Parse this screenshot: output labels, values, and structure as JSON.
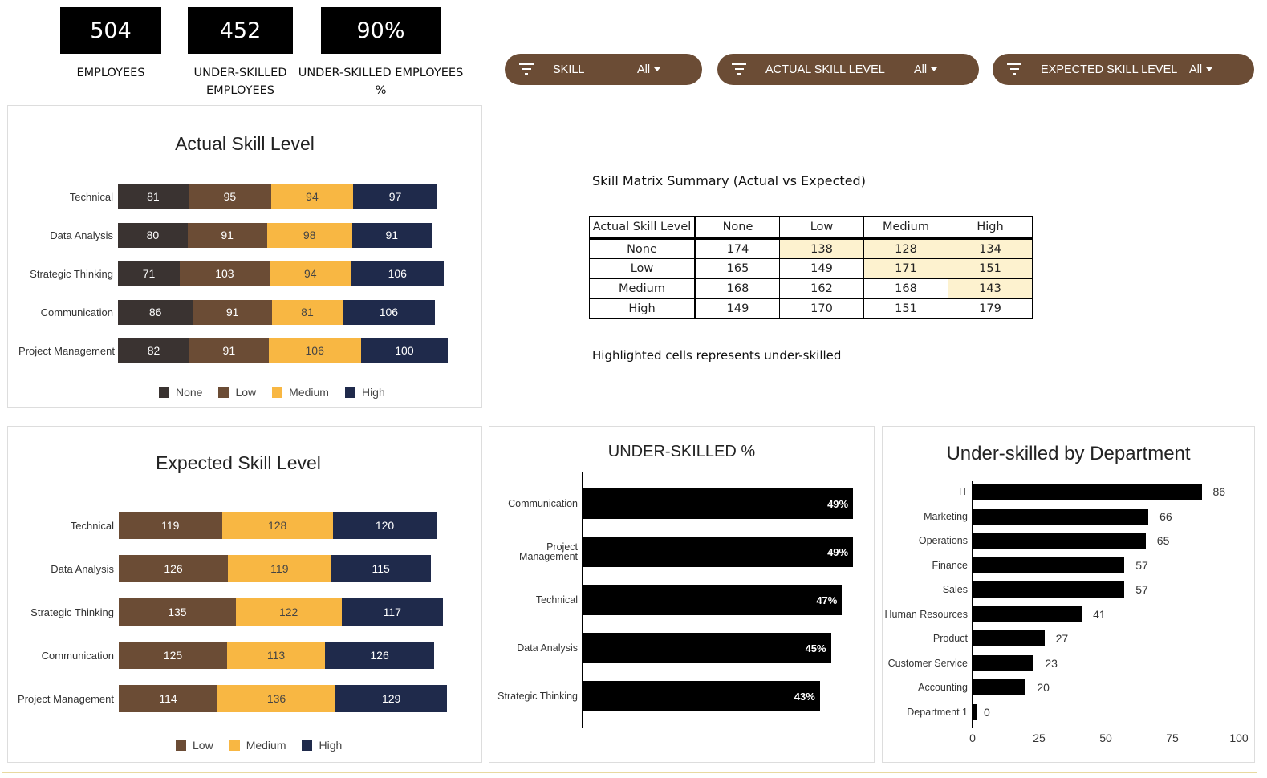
{
  "kpis": [
    {
      "value": "504",
      "label": "EMPLOYEES"
    },
    {
      "value": "452",
      "label": "UNDER-SKILLED EMPLOYEES"
    },
    {
      "value": "90%",
      "label": "UNDER-SKILLED EMPLOYEES %"
    }
  ],
  "filters": [
    {
      "label": "SKILL",
      "value": "All",
      "icon": "filter-icon"
    },
    {
      "label": "ACTUAL SKILL LEVEL",
      "value": "All",
      "icon": "filter-icon"
    },
    {
      "label": "EXPECTED SKILL LEVEL",
      "value": "All",
      "icon": "filter-icon"
    }
  ],
  "colors": {
    "None": "#3a3331",
    "Low": "#6b4c35",
    "Medium": "#f8b743",
    "High": "#1f2a4b",
    "bar": "#000000",
    "highlight": "#fdf2cf",
    "filter": "#6b4c35"
  },
  "matrix": {
    "title": "Skill Matrix Summary (Actual vs Expected)",
    "corner": "Actual Skill Level",
    "columns": [
      "None",
      "Low",
      "Medium",
      "High"
    ],
    "rows": [
      {
        "label": "None",
        "values": [
          "174",
          "138",
          "128",
          "134"
        ],
        "highlight": [
          false,
          true,
          true,
          true
        ]
      },
      {
        "label": "Low",
        "values": [
          "165",
          "149",
          "171",
          "151"
        ],
        "highlight": [
          false,
          false,
          true,
          true
        ]
      },
      {
        "label": "Medium",
        "values": [
          "168",
          "162",
          "168",
          "143"
        ],
        "highlight": [
          false,
          false,
          false,
          true
        ]
      },
      {
        "label": "High",
        "values": [
          "149",
          "170",
          "151",
          "179"
        ],
        "highlight": [
          false,
          false,
          false,
          false
        ]
      }
    ],
    "note": "Highlighted cells represents under-skilled"
  },
  "chart_data": [
    {
      "type": "bar",
      "stacked": true,
      "orientation": "horizontal",
      "title": "Actual Skill Level",
      "categories": [
        "Technical",
        "Data Analysis",
        "Strategic Thinking",
        "Communication",
        "Project Management"
      ],
      "series": [
        {
          "name": "None",
          "values": [
            81,
            80,
            71,
            86,
            82
          ]
        },
        {
          "name": "Low",
          "values": [
            95,
            91,
            103,
            91,
            91
          ]
        },
        {
          "name": "Medium",
          "values": [
            94,
            98,
            94,
            81,
            106
          ]
        },
        {
          "name": "High",
          "values": [
            97,
            91,
            106,
            106,
            100
          ]
        }
      ],
      "legend": "bottom"
    },
    {
      "type": "bar",
      "stacked": true,
      "orientation": "horizontal",
      "title": "Expected Skill Level",
      "categories": [
        "Technical",
        "Data Analysis",
        "Strategic Thinking",
        "Communication",
        "Project Management"
      ],
      "series": [
        {
          "name": "Low",
          "values": [
            119,
            126,
            135,
            125,
            114
          ]
        },
        {
          "name": "Medium",
          "values": [
            128,
            119,
            122,
            113,
            136
          ]
        },
        {
          "name": "High",
          "values": [
            120,
            115,
            117,
            126,
            129
          ]
        }
      ],
      "legend": "bottom"
    },
    {
      "type": "bar",
      "orientation": "horizontal",
      "title": "UNDER-SKILLED %",
      "categories": [
        "Communication",
        "Project Management",
        "Technical",
        "Data Analysis",
        "Strategic Thinking"
      ],
      "values": [
        49,
        49,
        47,
        45,
        43
      ],
      "labels": [
        "49%",
        "49%",
        "47%",
        "45%",
        "43%"
      ]
    },
    {
      "type": "bar",
      "orientation": "horizontal",
      "title": "Under-skilled by Department",
      "categories": [
        "IT",
        "Marketing",
        "Operations",
        "Finance",
        "Sales",
        "Human Resources",
        "Product",
        "Customer Service",
        "Accounting",
        "Department 1"
      ],
      "values": [
        86,
        66,
        65,
        57,
        57,
        41,
        27,
        23,
        20,
        0
      ],
      "xlim": [
        0,
        100
      ],
      "xticks": [
        "0",
        "25",
        "50",
        "75",
        "100"
      ]
    }
  ]
}
